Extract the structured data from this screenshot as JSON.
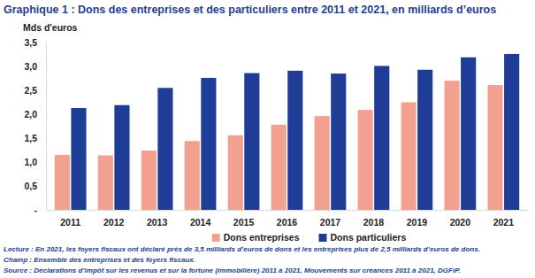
{
  "chart_data": {
    "type": "bar",
    "title": "Graphique 1 : Dons des entreprises et des particuliers entre 2011 et 2021, en milliards d’euros",
    "y_label": "Mds d'euros",
    "categories": [
      "2011",
      "2012",
      "2013",
      "2014",
      "2015",
      "2016",
      "2017",
      "2018",
      "2019",
      "2020",
      "2021"
    ],
    "series": [
      {
        "name": "Dons entreprises",
        "color": "#f4a090",
        "values": [
          1.15,
          1.14,
          1.24,
          1.44,
          1.56,
          1.78,
          1.96,
          2.09,
          2.25,
          2.7,
          2.61
        ]
      },
      {
        "name": "Dons particuliers",
        "color": "#1f3c96",
        "values": [
          2.13,
          2.19,
          2.55,
          2.76,
          2.86,
          2.91,
          2.85,
          3.01,
          2.93,
          3.19,
          3.26
        ]
      }
    ],
    "ylim": [
      0,
      3.5
    ],
    "yticks": [
      {
        "value": 0,
        "label": "-"
      },
      {
        "value": 0.5,
        "label": "0,5"
      },
      {
        "value": 1,
        "label": "1,0"
      },
      {
        "value": 1.5,
        "label": "1,5"
      },
      {
        "value": 2,
        "label": "2,0"
      },
      {
        "value": 2.5,
        "label": "2,5"
      },
      {
        "value": 3,
        "label": "3,0"
      },
      {
        "value": 3.5,
        "label": "3,5"
      }
    ],
    "grid": false,
    "legend": "bottom",
    "annotations": [
      {
        "label": "Lecture :",
        "text": " En 2021, les foyers fiscaux ont déclaré près de 3,5 milliards d’euros de dons et les entreprises plus de 2,5 milliards d’euros de dons."
      },
      {
        "label": "Champ :",
        "text": " Ensemble des entreprises et des foyers fiscaux."
      },
      {
        "label": "Source :",
        "text": " Déclarations d’impôt sur les revenus et sur la fortune (immobilière) 2011 à 2021, Mouvements sur créances 2011 à 2021, DGFiP."
      }
    ]
  }
}
